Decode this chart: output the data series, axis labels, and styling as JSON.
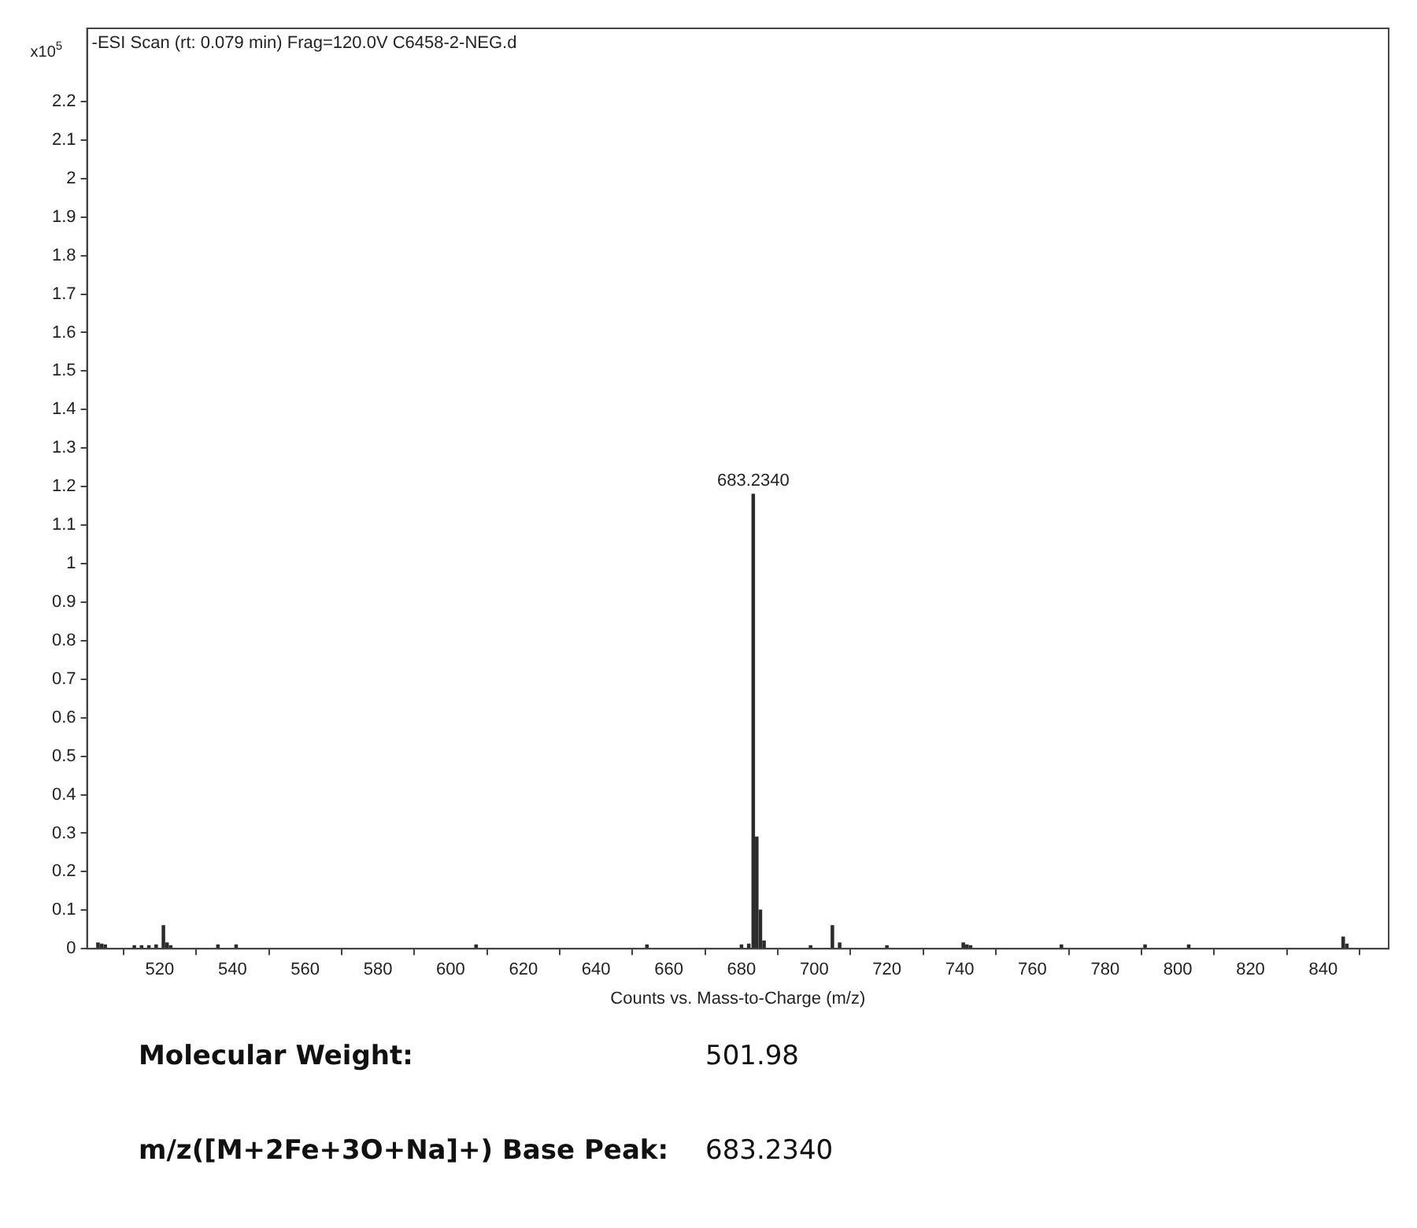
{
  "chart_data": {
    "type": "bar",
    "title": "-ESI Scan (rt: 0.079 min) Frag=120.0V C6458-2-NEG.d",
    "xlabel": "Counts vs. Mass-to-Charge (m/z)",
    "ylabel": "x10$^{5}$",
    "x": [
      503,
      504,
      505,
      513,
      515,
      517,
      519,
      521,
      522,
      523,
      536,
      541,
      607,
      654,
      680,
      682,
      683.234,
      684.2,
      685.2,
      686.2,
      699,
      705,
      707,
      720,
      741,
      742,
      743,
      768,
      791,
      803,
      845.5,
      846.5
    ],
    "series": [
      {
        "color": "#2b2b2b",
        "values": [
          0.015,
          0.012,
          0.01,
          0.008,
          0.008,
          0.008,
          0.01,
          0.06,
          0.015,
          0.008,
          0.01,
          0.01,
          0.01,
          0.01,
          0.01,
          0.012,
          1.18,
          0.29,
          0.1,
          0.02,
          0.008,
          0.06,
          0.015,
          0.008,
          0.015,
          0.01,
          0.008,
          0.01,
          0.01,
          0.01,
          0.03,
          0.012
        ]
      }
    ],
    "xlim": [
      500,
      858
    ],
    "xticks": [
      520,
      540,
      560,
      580,
      600,
      620,
      640,
      660,
      680,
      700,
      720,
      740,
      760,
      780,
      800,
      820,
      840
    ],
    "ylim": [
      0,
      2.39
    ],
    "yticks": [
      0,
      0.1,
      0.2,
      0.3,
      0.4,
      0.5,
      0.6,
      0.7,
      0.8,
      0.9,
      1,
      1.1,
      1.2,
      1.3,
      1.4,
      1.5,
      1.6,
      1.7,
      1.8,
      1.9,
      2,
      2.1,
      2.2
    ],
    "grid": false,
    "legend": false,
    "annotations": [
      {
        "text": "683.2340",
        "x": 683.234,
        "y": 1.18
      },
      "Molecular Weight:",
      "501.98",
      "m/z([M+2Fe+3O+Na]+) Base Peak:",
      "683.2340"
    ]
  }
}
